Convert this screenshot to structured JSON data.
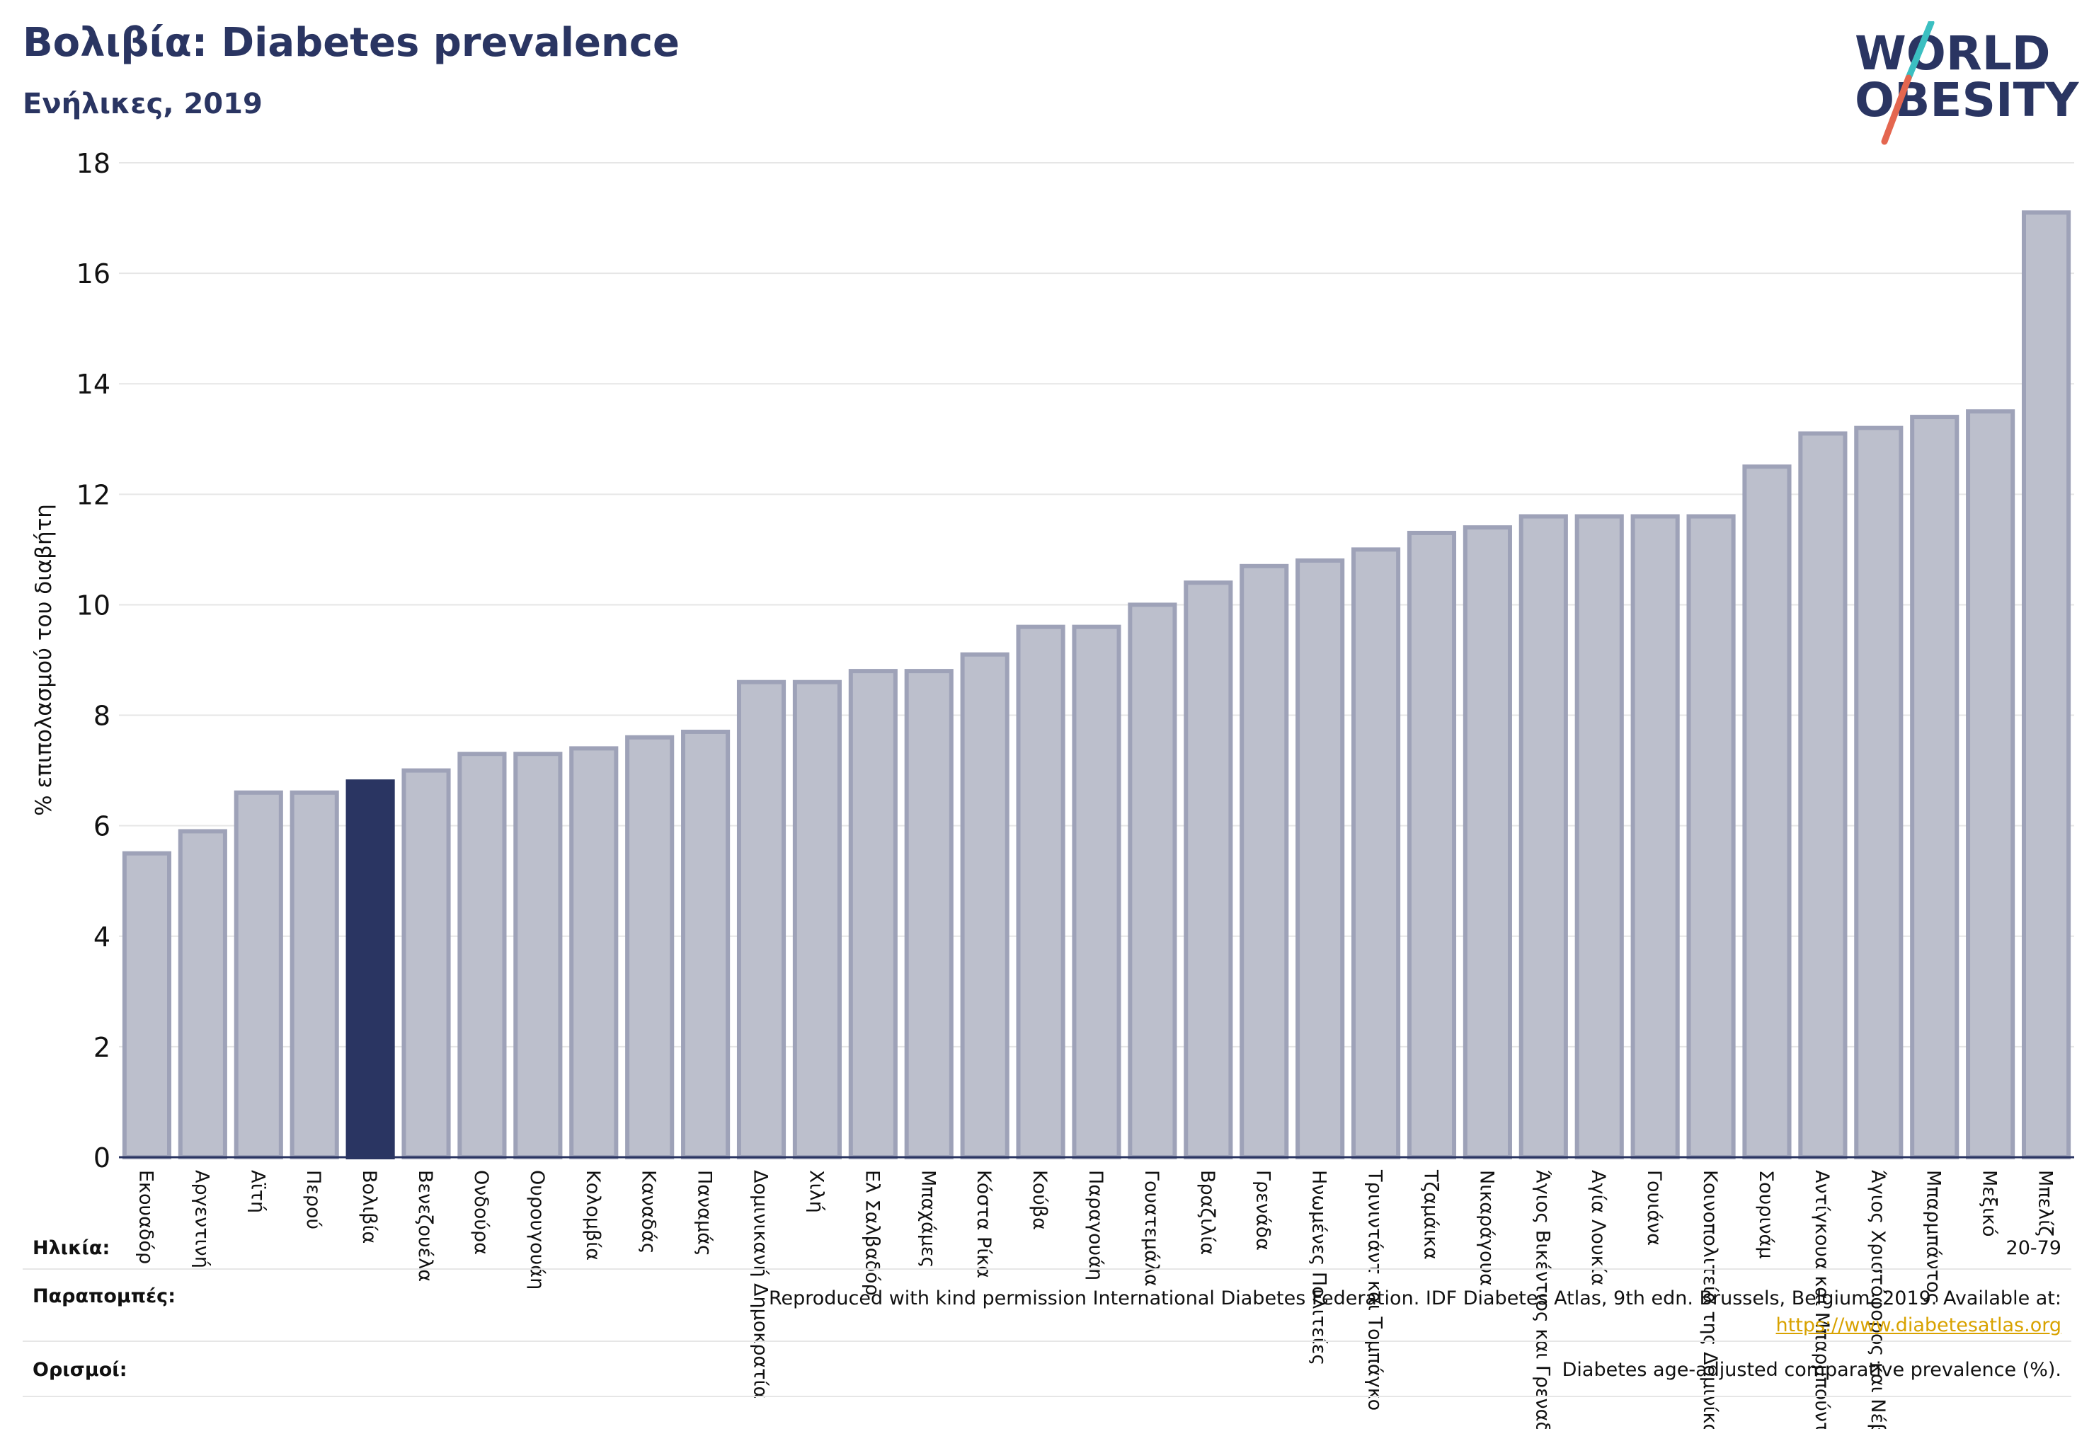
{
  "header": {
    "title": "Βολιβία: Diabetes prevalence",
    "subtitle": "Ενήλικες, 2019",
    "logo": {
      "line1": "WORLD",
      "line2": "OBESITY",
      "colors": {
        "text": "#2a3562",
        "slash_top": "#3bbfc1",
        "slash_bottom": "#e4664f"
      }
    }
  },
  "chart_data": {
    "type": "bar",
    "ylabel": "% επιπολασμού του διαβήτη",
    "ylim": [
      0,
      18
    ],
    "yticks": [
      0,
      2,
      4,
      6,
      8,
      10,
      12,
      14,
      16,
      18
    ],
    "grid": true,
    "highlight_category": "Βολιβία",
    "colors": {
      "bar": "#bcbfcc",
      "bar_edge": "#9ea2b8",
      "highlight": "#2a3562",
      "grid": "#e6e6e6",
      "axis": "#2a3562"
    },
    "categories": [
      "Εκουαδόρ",
      "Αργεντινή",
      "Αϊτή",
      "Περού",
      "Βολιβία",
      "Βενεζουέλα",
      "Ονδούρα",
      "Ουρουγουάη",
      "Κολομβία",
      "Καναδάς",
      "Παναμάς",
      "Δομινικανή Δημοκρατία",
      "Χιλή",
      "Ελ Σαλβαδόρ",
      "Μπαχάμες",
      "Κόστα Ρίκα",
      "Κούβα",
      "Παραγουάη",
      "Γουατεμάλα",
      "Βραζιλία",
      "Γρενάδα",
      "Ηνωμένες Πολιτείες",
      "Τρινιντάντ και Τομπάγκο",
      "Τζαμάικα",
      "Νικαράγουα",
      "Άγιος Βικέντιος και Γρεναδίνες",
      "Αγία Λουκία",
      "Γουιάνα",
      "Κοινοπολιτεία της Δομινίκας",
      "Σουρινάμ",
      "Αντίγκουα και Μπαρμπούντα",
      "Άγιος Χριστόφορος και Νέβις",
      "Μπαρμπάντος",
      "Μεξικό",
      "Μπελίζ"
    ],
    "values": [
      5.5,
      5.9,
      6.6,
      6.6,
      6.8,
      7.0,
      7.3,
      7.3,
      7.4,
      7.6,
      7.7,
      8.6,
      8.6,
      8.8,
      8.8,
      9.1,
      9.6,
      9.6,
      10.0,
      10.4,
      10.7,
      10.8,
      11.0,
      11.3,
      11.4,
      11.6,
      11.6,
      11.6,
      11.6,
      12.5,
      13.1,
      13.2,
      13.4,
      13.5,
      17.1
    ]
  },
  "footer": {
    "age_label": "Ηλικία:",
    "age_value": "20-79",
    "refs_label": "Παραπομπές:",
    "refs_text": "Reproduced with kind permission International Diabetes Federation. IDF Diabetes Atlas, 9th edn. Brussels, Belgium: 2019. Available at:",
    "refs_link": "https://www.diabetesatlas.org",
    "defs_label": "Ορισμοί:",
    "defs_text": "Diabetes age-adjusted comparative prevalence (%)."
  }
}
